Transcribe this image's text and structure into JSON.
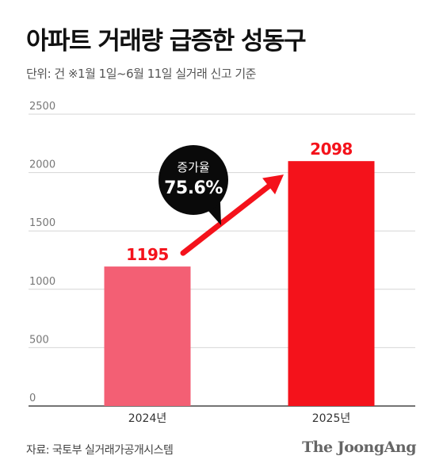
{
  "title": "아파트 거래량 급증한 성동구",
  "subtitle": "단위: 건  ※1월 1일~6월 11일 실거래 신고 기준",
  "source": "자료: 국토부 실거래가공개시스템",
  "brand": "The JoongAng",
  "colors": {
    "bar_2024": "#f35f74",
    "bar_2025": "#f4121b",
    "label": "#f4121b",
    "arrow": "#f4121b",
    "bubble": "#0a0a0a"
  },
  "chart_data": {
    "type": "bar",
    "categories": [
      "2024년",
      "2025년"
    ],
    "values": [
      1195,
      2098
    ],
    "data_labels": [
      "1195",
      "2098"
    ],
    "ylim": [
      0,
      2500
    ],
    "yticks": [
      0,
      500,
      1000,
      1500,
      2000,
      2500
    ],
    "ytick_labels": [
      "0",
      "500",
      "1000",
      "1500",
      "2000",
      "2500"
    ],
    "grid": true,
    "annotation": {
      "line1": "증가율",
      "line2": "75.6%"
    }
  }
}
